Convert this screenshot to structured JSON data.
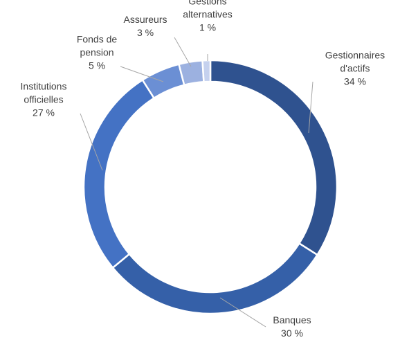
{
  "chart_data": {
    "type": "donut",
    "title": "",
    "unit": "%",
    "slices": [
      {
        "name": "Gestionnaires d'actifs",
        "label_lines": [
          "Gestionnaires",
          "d'actifs"
        ],
        "value": 34,
        "value_label": "34 %",
        "color": "#2f528f"
      },
      {
        "name": "Banques",
        "label_lines": [
          "Banques"
        ],
        "value": 30,
        "value_label": "30 %",
        "color": "#3560a8"
      },
      {
        "name": "Institutions officielles",
        "label_lines": [
          "Institutions",
          "officielles"
        ],
        "value": 27,
        "value_label": "27 %",
        "color": "#4472c4"
      },
      {
        "name": "Fonds de pension",
        "label_lines": [
          "Fonds de",
          "pension"
        ],
        "value": 5,
        "value_label": "5 %",
        "color": "#6b8fd4"
      },
      {
        "name": "Assureurs",
        "label_lines": [
          "Assureurs"
        ],
        "value": 3,
        "value_label": "3 %",
        "color": "#9cb1e0"
      },
      {
        "name": "Gestions alternatives",
        "label_lines": [
          "Gestions",
          "alternatives"
        ],
        "value": 1,
        "value_label": "1 %",
        "color": "#c5d1ee"
      }
    ],
    "legend": "none",
    "labels": "outside with leader lines"
  }
}
